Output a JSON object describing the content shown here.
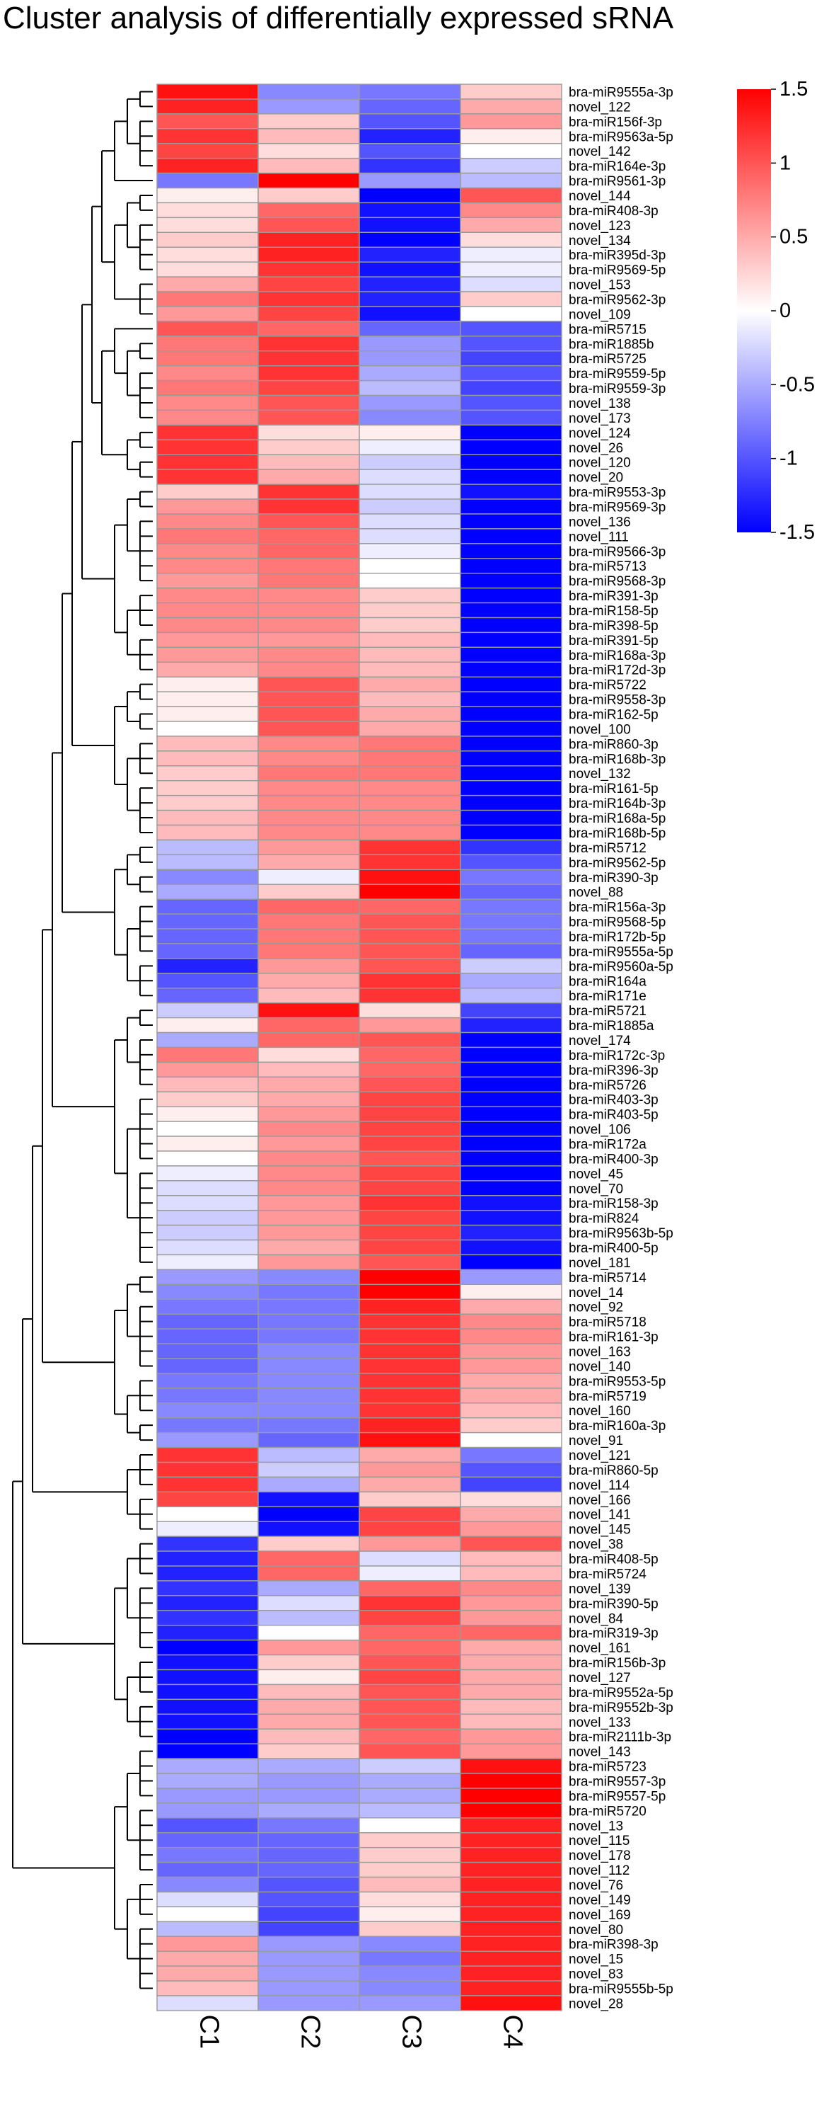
{
  "chart_data": {
    "type": "heatmap",
    "title": "Cluster analysis of differentially expressed sRNA",
    "columns": [
      "C1",
      "C2",
      "C3",
      "C4"
    ],
    "colorbar": {
      "min": -1.5,
      "max": 1.5,
      "ticks": [
        "1.5",
        "1",
        "0.5",
        "0",
        "-0.5",
        "-1",
        "-1.5"
      ],
      "tick_values": [
        1.5,
        1,
        0.5,
        0,
        -0.5,
        -1,
        -1.5
      ],
      "low_color": "#0000ff",
      "mid_color": "#ffffff",
      "high_color": "#ff0000"
    },
    "rows": [
      "bra-miR9555a-3p",
      "novel_122",
      "bra-miR156f-3p",
      "bra-miR9563a-5p",
      "novel_142",
      "bra-miR164e-3p",
      "bra-miR9561-3p",
      "novel_144",
      "bra-miR408-3p",
      "novel_123",
      "novel_134",
      "bra-miR395d-3p",
      "bra-miR9569-5p",
      "novel_153",
      "bra-miR9562-3p",
      "novel_109",
      "bra-miR5715",
      "bra-miR1885b",
      "bra-miR5725",
      "bra-miR9559-5p",
      "bra-miR9559-3p",
      "novel_138",
      "novel_173",
      "novel_124",
      "novel_26",
      "novel_120",
      "novel_20",
      "bra-miR9553-3p",
      "bra-miR9569-3p",
      "novel_136",
      "novel_111",
      "bra-miR9566-3p",
      "bra-miR5713",
      "bra-miR9568-3p",
      "bra-miR391-3p",
      "bra-miR158-5p",
      "bra-miR398-5p",
      "bra-miR391-5p",
      "bra-miR168a-3p",
      "bra-miR172d-3p",
      "bra-miR5722",
      "bra-miR9558-3p",
      "bra-miR162-5p",
      "novel_100",
      "bra-miR860-3p",
      "bra-miR168b-3p",
      "novel_132",
      "bra-miR161-5p",
      "bra-miR164b-3p",
      "bra-miR168a-5p",
      "bra-miR168b-5p",
      "bra-miR5712",
      "bra-miR9562-5p",
      "bra-miR390-3p",
      "novel_88",
      "bra-miR156a-3p",
      "bra-miR9568-5p",
      "bra-miR172b-5p",
      "bra-miR9555a-5p",
      "bra-miR9560a-5p",
      "bra-miR164a",
      "bra-miR171e",
      "bra-miR5721",
      "bra-miR1885a",
      "novel_174",
      "bra-miR172c-3p",
      "bra-miR396-3p",
      "bra-miR5726",
      "bra-miR403-3p",
      "bra-miR403-5p",
      "novel_106",
      "bra-miR172a",
      "bra-miR400-3p",
      "novel_45",
      "novel_70",
      "bra-miR158-3p",
      "bra-miR824",
      "bra-miR9563b-5p",
      "bra-miR400-5p",
      "novel_181",
      "bra-miR5714",
      "novel_14",
      "novel_92",
      "bra-miR5718",
      "bra-miR161-3p",
      "novel_163",
      "novel_140",
      "bra-miR9553-5p",
      "bra-miR5719",
      "novel_160",
      "bra-miR160a-3p",
      "novel_91",
      "novel_121",
      "bra-miR860-5p",
      "novel_114",
      "novel_166",
      "novel_141",
      "novel_145",
      "novel_38",
      "bra-miR408-5p",
      "bra-miR5724",
      "novel_139",
      "bra-miR390-5p",
      "novel_84",
      "bra-miR319-3p",
      "novel_161",
      "bra-miR156b-3p",
      "novel_127",
      "bra-miR9552a-5p",
      "bra-miR9552b-3p",
      "novel_133",
      "bra-miR2111b-3p",
      "novel_143",
      "bra-miR5723",
      "bra-miR9557-3p",
      "bra-miR9557-5p",
      "bra-miR5720",
      "novel_13",
      "novel_115",
      "novel_178",
      "novel_112",
      "novel_76",
      "novel_149",
      "novel_169",
      "novel_80",
      "bra-miR398-3p",
      "novel_15",
      "novel_83",
      "bra-miR9555b-5p",
      "novel_28"
    ],
    "values": [
      [
        1.4,
        -0.7,
        -0.8,
        0.3
      ],
      [
        1.3,
        -0.6,
        -0.9,
        0.5
      ],
      [
        1.0,
        0.3,
        -1.0,
        0.6
      ],
      [
        1.2,
        0.4,
        -1.3,
        0.1
      ],
      [
        1.1,
        0.2,
        -1.0,
        0.0
      ],
      [
        1.3,
        0.4,
        -1.2,
        -0.3
      ],
      [
        -0.8,
        1.5,
        -0.6,
        -0.4
      ],
      [
        0.1,
        0.3,
        -1.5,
        1.0
      ],
      [
        0.2,
        0.9,
        -1.4,
        0.7
      ],
      [
        0.2,
        1.0,
        -1.4,
        0.5
      ],
      [
        0.3,
        1.3,
        -1.5,
        0.2
      ],
      [
        0.2,
        1.3,
        -1.3,
        -0.1
      ],
      [
        0.2,
        1.2,
        -1.4,
        -0.1
      ],
      [
        0.5,
        1.1,
        -1.3,
        -0.2
      ],
      [
        0.8,
        1.2,
        -1.3,
        0.3
      ],
      [
        0.6,
        1.1,
        -1.4,
        0.0
      ],
      [
        1.0,
        0.9,
        -0.9,
        -1.0
      ],
      [
        0.8,
        1.2,
        -0.6,
        -1.0
      ],
      [
        0.8,
        1.2,
        -0.6,
        -1.1
      ],
      [
        0.7,
        1.2,
        -0.5,
        -1.0
      ],
      [
        0.8,
        1.1,
        -0.4,
        -1.1
      ],
      [
        0.7,
        1.0,
        -0.6,
        -1.0
      ],
      [
        0.7,
        1.0,
        -0.7,
        -1.0
      ],
      [
        1.2,
        0.2,
        0.1,
        -1.5
      ],
      [
        1.2,
        0.3,
        -0.1,
        -1.5
      ],
      [
        1.2,
        0.4,
        -0.3,
        -1.5
      ],
      [
        1.2,
        0.5,
        -0.2,
        -1.5
      ],
      [
        0.3,
        1.2,
        -0.2,
        -1.4
      ],
      [
        0.6,
        1.2,
        -0.3,
        -1.5
      ],
      [
        0.7,
        1.0,
        -0.2,
        -1.5
      ],
      [
        0.8,
        0.9,
        -0.2,
        -1.5
      ],
      [
        0.7,
        0.9,
        -0.1,
        -1.5
      ],
      [
        0.7,
        0.8,
        0.0,
        -1.5
      ],
      [
        0.6,
        0.8,
        0.0,
        -1.5
      ],
      [
        0.7,
        0.7,
        0.3,
        -1.5
      ],
      [
        0.7,
        0.7,
        0.3,
        -1.5
      ],
      [
        0.7,
        0.7,
        0.3,
        -1.5
      ],
      [
        0.6,
        0.6,
        0.4,
        -1.5
      ],
      [
        0.6,
        0.7,
        0.4,
        -1.5
      ],
      [
        0.5,
        0.7,
        0.4,
        -1.5
      ],
      [
        0.1,
        1.0,
        0.5,
        -1.5
      ],
      [
        0.1,
        1.0,
        0.4,
        -1.5
      ],
      [
        0.1,
        1.0,
        0.5,
        -1.5
      ],
      [
        0.0,
        1.0,
        0.5,
        -1.5
      ],
      [
        0.4,
        0.7,
        0.8,
        -1.5
      ],
      [
        0.4,
        0.7,
        0.8,
        -1.5
      ],
      [
        0.3,
        0.8,
        0.8,
        -1.5
      ],
      [
        0.3,
        0.7,
        0.7,
        -1.5
      ],
      [
        0.3,
        0.7,
        0.7,
        -1.5
      ],
      [
        0.4,
        0.7,
        0.7,
        -1.5
      ],
      [
        0.4,
        0.7,
        0.7,
        -1.5
      ],
      [
        -0.4,
        0.6,
        1.2,
        -1.2
      ],
      [
        -0.4,
        0.5,
        1.2,
        -1.0
      ],
      [
        -0.7,
        -0.1,
        1.4,
        -0.8
      ],
      [
        -0.5,
        0.3,
        1.5,
        -0.9
      ],
      [
        -0.9,
        0.9,
        0.9,
        -0.8
      ],
      [
        -0.9,
        0.8,
        1.0,
        -0.8
      ],
      [
        -0.9,
        0.8,
        1.0,
        -0.8
      ],
      [
        -0.9,
        0.8,
        1.0,
        -0.9
      ],
      [
        -1.3,
        0.6,
        1.0,
        -0.3
      ],
      [
        -1.0,
        0.5,
        1.2,
        -0.5
      ],
      [
        -0.9,
        0.4,
        1.2,
        -0.4
      ],
      [
        -0.3,
        1.4,
        0.2,
        -1.1
      ],
      [
        0.1,
        0.9,
        0.6,
        -1.3
      ],
      [
        -0.5,
        0.9,
        1.0,
        -1.5
      ],
      [
        0.8,
        0.2,
        0.9,
        -1.5
      ],
      [
        0.6,
        0.4,
        0.9,
        -1.5
      ],
      [
        0.4,
        0.5,
        1.0,
        -1.5
      ],
      [
        0.3,
        0.5,
        1.1,
        -1.5
      ],
      [
        0.1,
        0.6,
        1.1,
        -1.5
      ],
      [
        0.0,
        0.7,
        1.1,
        -1.5
      ],
      [
        0.1,
        0.6,
        1.1,
        -1.5
      ],
      [
        0.0,
        0.7,
        1.0,
        -1.5
      ],
      [
        -0.1,
        0.7,
        1.1,
        -1.5
      ],
      [
        -0.2,
        0.7,
        1.1,
        -1.5
      ],
      [
        -0.2,
        0.6,
        1.2,
        -1.4
      ],
      [
        -0.3,
        0.6,
        1.1,
        -1.4
      ],
      [
        -0.3,
        0.6,
        1.1,
        -1.3
      ],
      [
        -0.2,
        0.5,
        1.1,
        -1.4
      ],
      [
        -0.1,
        0.6,
        1.0,
        -1.5
      ],
      [
        -0.6,
        -0.7,
        1.5,
        -0.6
      ],
      [
        -0.7,
        -0.8,
        1.5,
        0.1
      ],
      [
        -0.8,
        -0.8,
        1.3,
        0.5
      ],
      [
        -0.9,
        -0.8,
        1.2,
        0.7
      ],
      [
        -0.9,
        -0.8,
        1.2,
        0.7
      ],
      [
        -0.9,
        -0.7,
        1.2,
        0.6
      ],
      [
        -0.9,
        -0.7,
        1.2,
        0.6
      ],
      [
        -0.8,
        -0.7,
        1.2,
        0.5
      ],
      [
        -0.8,
        -0.7,
        1.2,
        0.5
      ],
      [
        -0.7,
        -0.7,
        1.2,
        0.4
      ],
      [
        -0.8,
        -0.8,
        1.3,
        0.3
      ],
      [
        -0.6,
        -0.9,
        1.4,
        0.0
      ],
      [
        1.2,
        -0.4,
        0.5,
        -0.8
      ],
      [
        1.2,
        -0.3,
        0.6,
        -1.0
      ],
      [
        1.2,
        -0.5,
        0.5,
        -1.1
      ],
      [
        1.1,
        -1.4,
        0.3,
        0.2
      ],
      [
        0.0,
        -1.5,
        1.1,
        0.5
      ],
      [
        -0.1,
        -1.4,
        1.1,
        0.6
      ],
      [
        -1.2,
        0.3,
        0.6,
        1.0
      ],
      [
        -1.3,
        0.9,
        -0.2,
        0.4
      ],
      [
        -1.3,
        0.9,
        -0.1,
        0.4
      ],
      [
        -1.2,
        -0.5,
        0.9,
        0.7
      ],
      [
        -1.3,
        -0.2,
        1.2,
        0.6
      ],
      [
        -1.2,
        -0.4,
        1.1,
        0.6
      ],
      [
        -1.3,
        0.0,
        0.9,
        0.9
      ],
      [
        -1.5,
        0.6,
        0.9,
        0.5
      ],
      [
        -1.4,
        0.3,
        1.0,
        0.5
      ],
      [
        -1.4,
        0.1,
        1.1,
        0.5
      ],
      [
        -1.4,
        0.4,
        1.0,
        0.5
      ],
      [
        -1.4,
        0.5,
        1.0,
        0.4
      ],
      [
        -1.4,
        0.5,
        1.0,
        0.4
      ],
      [
        -1.5,
        0.4,
        0.9,
        0.6
      ],
      [
        -1.5,
        0.3,
        1.0,
        0.6
      ],
      [
        -0.5,
        -0.5,
        -0.3,
        1.4
      ],
      [
        -0.5,
        -0.6,
        -0.5,
        1.5
      ],
      [
        -0.6,
        -0.6,
        -0.5,
        1.5
      ],
      [
        -0.6,
        -0.5,
        -0.4,
        1.5
      ],
      [
        -1.0,
        -0.8,
        0.0,
        1.3
      ],
      [
        -0.9,
        -0.9,
        0.3,
        1.3
      ],
      [
        -0.8,
        -0.9,
        0.3,
        1.3
      ],
      [
        -0.9,
        -0.9,
        0.3,
        1.3
      ],
      [
        -0.7,
        -1.0,
        0.4,
        1.3
      ],
      [
        -0.2,
        -1.0,
        0.2,
        1.3
      ],
      [
        0.0,
        -1.1,
        0.1,
        1.3
      ],
      [
        -0.4,
        -1.1,
        0.3,
        1.3
      ],
      [
        0.6,
        -0.6,
        -0.7,
        1.3
      ],
      [
        0.5,
        -0.6,
        -0.8,
        1.3
      ],
      [
        0.5,
        -0.6,
        -0.7,
        1.3
      ],
      [
        0.4,
        -0.6,
        -0.7,
        1.3
      ],
      [
        -0.2,
        -0.6,
        -0.6,
        1.4
      ]
    ]
  }
}
